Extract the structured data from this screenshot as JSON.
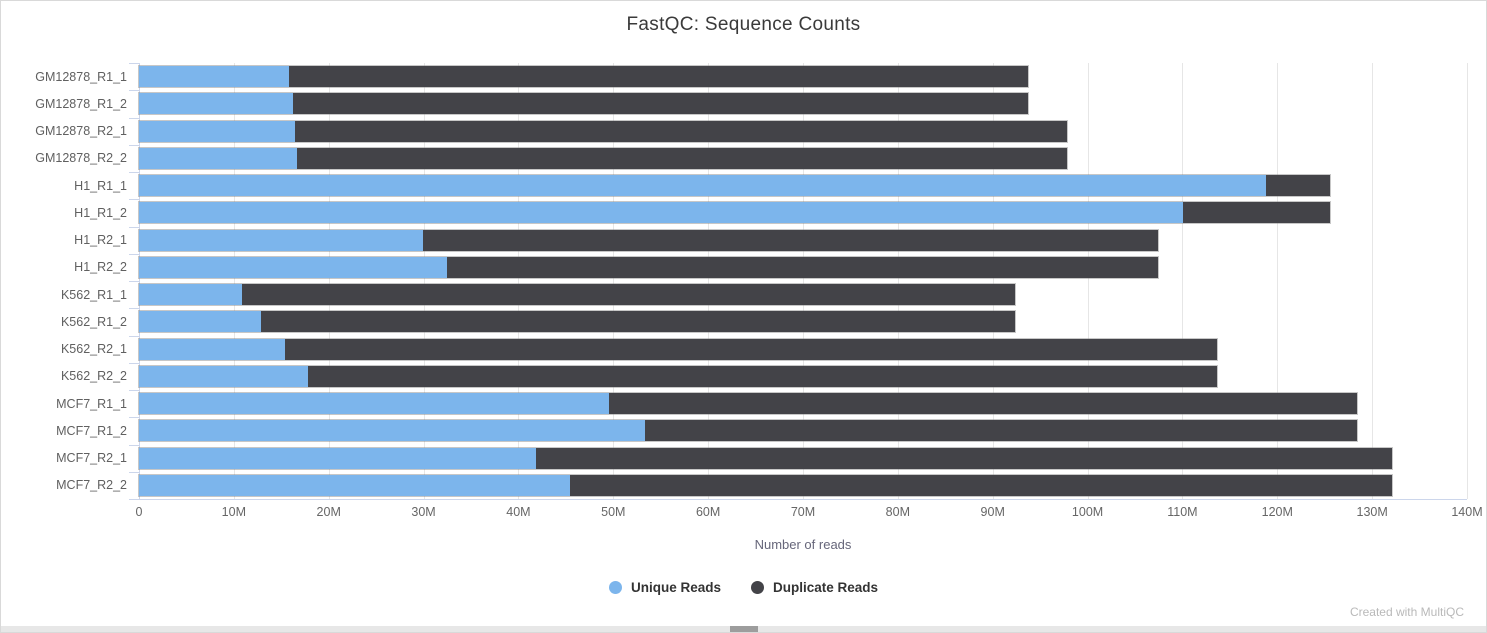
{
  "title": "FastQC: Sequence Counts",
  "xlabel": "Number of reads",
  "footer": "Created with MultiQC",
  "legend": [
    {
      "label": "Unique Reads",
      "color": "#7cb5ec"
    },
    {
      "label": "Duplicate Reads",
      "color": "#434348"
    }
  ],
  "colors": {
    "unique": "#7cb5ec",
    "duplicate": "#434348",
    "gridline": "#e6e6e6",
    "axis": "#ccd6eb",
    "tick_label": "#666666",
    "category_label": "#606060"
  },
  "chart_data": {
    "type": "bar",
    "orientation": "horizontal",
    "stacked": true,
    "title": "FastQC: Sequence Counts",
    "xlabel": "Number of reads",
    "unit": "millions of reads",
    "xlim": [
      0,
      140
    ],
    "grid": true,
    "legend_position": "bottom",
    "x_ticks": [
      "0",
      "10M",
      "20M",
      "30M",
      "40M",
      "50M",
      "60M",
      "70M",
      "80M",
      "90M",
      "100M",
      "110M",
      "120M",
      "130M",
      "140M"
    ],
    "categories": [
      "GM12878_R1_1",
      "GM12878_R1_2",
      "GM12878_R2_1",
      "GM12878_R2_2",
      "H1_R1_1",
      "H1_R1_2",
      "H1_R2_1",
      "H1_R2_2",
      "K562_R1_1",
      "K562_R1_2",
      "K562_R2_1",
      "K562_R2_2",
      "MCF7_R1_1",
      "MCF7_R1_2",
      "MCF7_R2_1",
      "MCF7_R2_2"
    ],
    "series": [
      {
        "name": "Unique Reads",
        "color": "#7cb5ec",
        "values": [
          15.8,
          16.2,
          16.4,
          16.7,
          118.8,
          110.1,
          29.9,
          32.5,
          10.9,
          12.9,
          15.4,
          17.8,
          49.6,
          53.3,
          41.9,
          45.4
        ]
      },
      {
        "name": "Duplicate Reads",
        "color": "#434348",
        "values": [
          77.9,
          77.5,
          81.4,
          81.1,
          6.8,
          15.5,
          77.5,
          74.9,
          81.4,
          79.4,
          98.2,
          95.8,
          78.8,
          75.1,
          90.2,
          86.7
        ]
      }
    ]
  }
}
